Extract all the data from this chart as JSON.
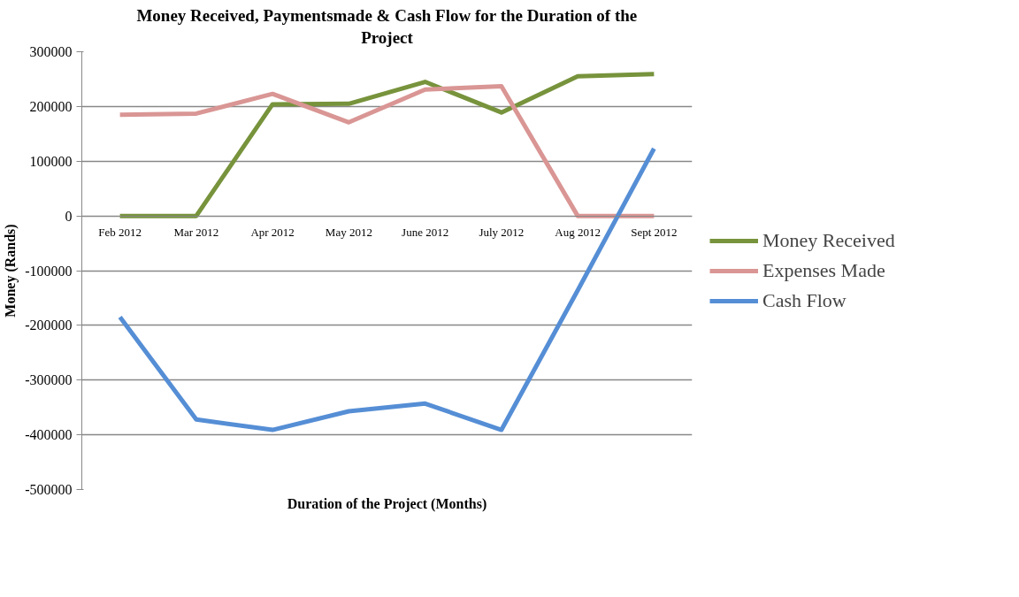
{
  "chart_data": {
    "type": "line",
    "title": "Money Received, Paymentsmade & Cash Flow for the Duration of the Project",
    "xlabel": "Duration of the Project (Months)",
    "ylabel": "Money (Rands)",
    "categories": [
      "Feb 2012",
      "Mar 2012",
      "Apr 2012",
      "May 2012",
      "June 2012",
      "July 2012",
      "Aug 2012",
      "Sept 2012"
    ],
    "series": [
      {
        "name": "Money Received",
        "color": "#77933c",
        "values": [
          0,
          0,
          204000,
          205000,
          245000,
          189000,
          255000,
          259000
        ]
      },
      {
        "name": "Expenses Made",
        "color": "#d99694",
        "values": [
          185000,
          187000,
          223000,
          171000,
          231000,
          237000,
          0,
          0
        ]
      },
      {
        "name": "Cash Flow",
        "color": "#558ed5",
        "values": [
          -185000,
          -372000,
          -391000,
          -357000,
          -343000,
          -391000,
          -136000,
          123000
        ]
      }
    ],
    "ylim": [
      -500000,
      300000
    ],
    "yticks": [
      -500000,
      -400000,
      -300000,
      -200000,
      -100000,
      0,
      100000,
      200000,
      300000
    ],
    "grid": "y",
    "legend": "right",
    "marker": "none",
    "line_style": "solid"
  }
}
